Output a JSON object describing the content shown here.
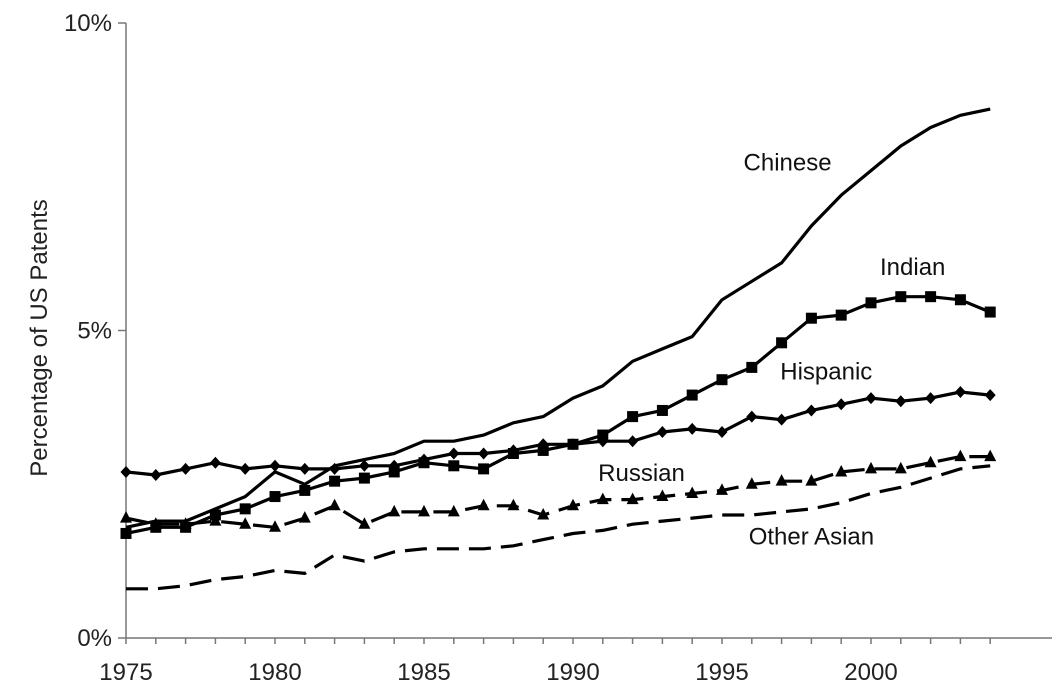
{
  "chart_data": {
    "type": "line",
    "title": "",
    "xlabel": "",
    "ylabel": "Percentage of US Patents",
    "xlim": [
      1975,
      2004
    ],
    "ylim": [
      0,
      10
    ],
    "x_ticks": [
      1975,
      1980,
      1985,
      1990,
      1995,
      2000
    ],
    "x_tick_labels": [
      "1975",
      "1980",
      "1985",
      "1990",
      "1995",
      "2000"
    ],
    "y_ticks": [
      0,
      5,
      10
    ],
    "y_tick_labels": [
      "0%",
      "5%",
      "10%"
    ],
    "grid": false,
    "legend": "inline labels",
    "x": [
      1975,
      1976,
      1977,
      1978,
      1979,
      1980,
      1981,
      1982,
      1983,
      1984,
      1985,
      1986,
      1987,
      1988,
      1989,
      1990,
      1991,
      1992,
      1993,
      1994,
      1995,
      1996,
      1997,
      1998,
      1999,
      2000,
      2001,
      2002,
      2003,
      2004
    ],
    "series": [
      {
        "name": "Chinese",
        "style": "solid",
        "marker": "none",
        "values": [
          1.8,
          1.9,
          1.9,
          2.1,
          2.3,
          2.7,
          2.5,
          2.8,
          2.9,
          3.0,
          3.2,
          3.2,
          3.3,
          3.5,
          3.6,
          3.9,
          4.1,
          4.5,
          4.7,
          4.9,
          5.5,
          5.8,
          6.1,
          6.7,
          7.2,
          7.6,
          8.0,
          8.3,
          8.5,
          8.6
        ]
      },
      {
        "name": "Indian",
        "style": "solid",
        "marker": "square",
        "values": [
          1.7,
          1.8,
          1.8,
          2.0,
          2.1,
          2.3,
          2.4,
          2.55,
          2.6,
          2.7,
          2.85,
          2.8,
          2.75,
          3.0,
          3.05,
          3.15,
          3.3,
          3.6,
          3.7,
          3.95,
          4.2,
          4.4,
          4.8,
          5.2,
          5.25,
          5.45,
          5.55,
          5.55,
          5.5,
          5.3
        ]
      },
      {
        "name": "Hispanic",
        "style": "solid",
        "marker": "diamond",
        "values": [
          2.7,
          2.65,
          2.75,
          2.85,
          2.75,
          2.8,
          2.75,
          2.75,
          2.8,
          2.8,
          2.9,
          3.0,
          3.0,
          3.05,
          3.15,
          3.15,
          3.2,
          3.2,
          3.35,
          3.4,
          3.35,
          3.6,
          3.55,
          3.7,
          3.8,
          3.9,
          3.85,
          3.9,
          4.0,
          3.95
        ]
      },
      {
        "name": "Russian",
        "style": "dashed",
        "marker": "triangle",
        "values": [
          1.95,
          1.85,
          1.85,
          1.9,
          1.85,
          1.8,
          1.95,
          2.15,
          1.85,
          2.05,
          2.05,
          2.05,
          2.15,
          2.15,
          2.0,
          2.15,
          2.25,
          2.25,
          2.3,
          2.35,
          2.4,
          2.5,
          2.55,
          2.55,
          2.7,
          2.75,
          2.75,
          2.85,
          2.95,
          2.95
        ]
      },
      {
        "name": "Other Asian",
        "style": "dashed",
        "marker": "none",
        "values": [
          0.8,
          0.8,
          0.85,
          0.95,
          1.0,
          1.1,
          1.05,
          1.35,
          1.25,
          1.4,
          1.45,
          1.45,
          1.45,
          1.5,
          1.6,
          1.7,
          1.75,
          1.85,
          1.9,
          1.95,
          2.0,
          2.0,
          2.05,
          2.1,
          2.2,
          2.35,
          2.45,
          2.6,
          2.75,
          2.8
        ]
      }
    ],
    "annotations": [
      {
        "series": "Chinese",
        "text": "Chinese",
        "x": 1997.2,
        "y": 7.6
      },
      {
        "series": "Indian",
        "text": "Indian",
        "x": 2001.4,
        "y": 5.9
      },
      {
        "series": "Hispanic",
        "text": "Hispanic",
        "x": 1998.5,
        "y": 4.2
      },
      {
        "series": "Russian",
        "text": "Russian",
        "x": 1992.3,
        "y": 2.55
      },
      {
        "series": "Other Asian",
        "text": "Other Asian",
        "x": 1998.0,
        "y": 1.52
      }
    ]
  }
}
